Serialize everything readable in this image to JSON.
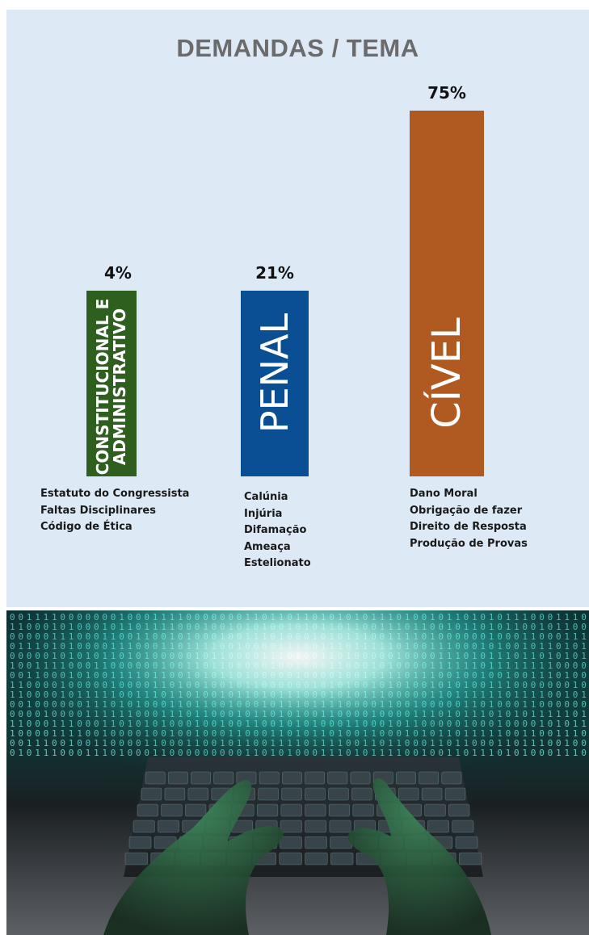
{
  "chart_data": {
    "type": "bar",
    "title": "DEMANDAS / TEMA",
    "categories": [
      "CONSTITUCIONAL E ADMINISTRATIVO",
      "PENAL",
      "CÍVEL"
    ],
    "values": [
      4,
      21,
      75
    ],
    "value_labels": [
      "4%",
      "21%",
      "75%"
    ],
    "unit": "%",
    "ylim": [
      0,
      75
    ],
    "colors": [
      "#2e5f1e",
      "#0a4f93",
      "#b05a21"
    ],
    "category_label_lines": [
      [
        "CONSTITUCIONAL E",
        "ADMINISTRATIVO"
      ],
      [
        "PENAL"
      ],
      [
        "CÍVEL"
      ]
    ],
    "topics": [
      [
        "Estatuto do Congressista",
        "Faltas Disciplinares",
        "Código de Ética"
      ],
      [
        "Calúnia",
        "Injúria",
        "Difamação",
        "Ameaça",
        "Estelionato"
      ],
      [
        "Dano Moral",
        "Obrigação de fazer",
        "Direito de Resposta",
        "Produção de Provas"
      ]
    ],
    "grid": false,
    "legend": "none"
  },
  "photo": {
    "description_icon": "hands-typing-on-laptop-with-binary-code-image"
  }
}
